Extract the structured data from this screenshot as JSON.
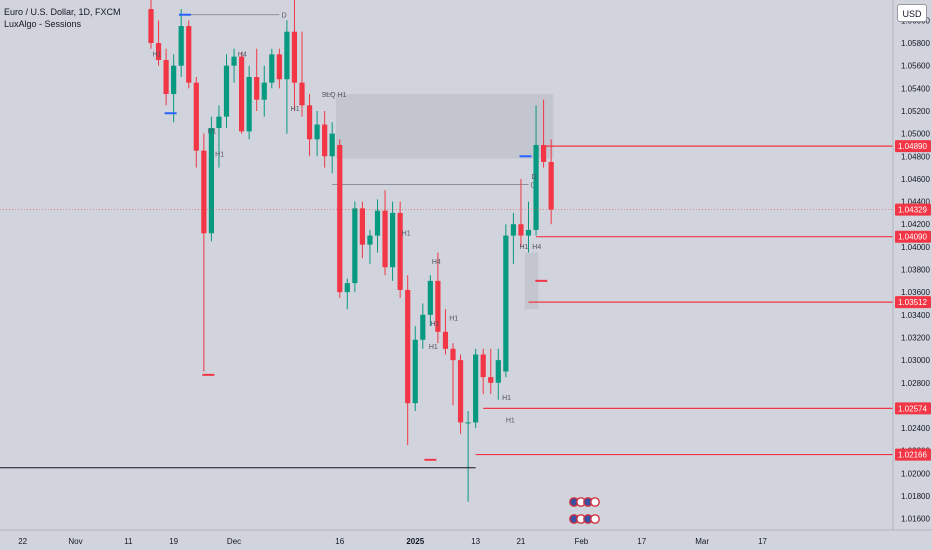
{
  "header": {
    "symbol": "Euro / U.S. Dollar, 1D, FXCM",
    "indicator": "LuxAlgo - Sessions",
    "currency_button": "USD"
  },
  "chart_data": {
    "type": "candlestick",
    "x_ticks": [
      {
        "label": "22",
        "bar": -17
      },
      {
        "label": "Nov",
        "bar": -10
      },
      {
        "label": "11",
        "bar": -3
      },
      {
        "label": "19",
        "bar": 3
      },
      {
        "label": "Dec",
        "bar": 11
      },
      {
        "label": "16",
        "bar": 25
      },
      {
        "label": "2025",
        "bar": 35
      },
      {
        "label": "13",
        "bar": 43
      },
      {
        "label": "21",
        "bar": 49
      },
      {
        "label": "Feb",
        "bar": 57
      },
      {
        "label": "17",
        "bar": 65
      },
      {
        "label": "Mar",
        "bar": 73
      },
      {
        "label": "17",
        "bar": 81
      }
    ],
    "y_ticks": [
      "1.06000",
      "1.05800",
      "1.05600",
      "1.05400",
      "1.05200",
      "1.05000",
      "1.04800",
      "1.04600",
      "1.04400",
      "1.04200",
      "1.04000",
      "1.03800",
      "1.03600",
      "1.03400",
      "1.03200",
      "1.03000",
      "1.02800",
      "1.02600",
      "1.02400",
      "1.02200",
      "1.02000",
      "1.01800",
      "1.01600"
    ],
    "ylim": [
      1.015,
      1.0618
    ],
    "candles": [
      [
        1.061,
        1.062,
        1.0575,
        1.058
      ],
      [
        1.058,
        1.06,
        1.056,
        1.0565
      ],
      [
        1.0565,
        1.0575,
        1.0525,
        1.0535
      ],
      [
        1.0535,
        1.057,
        1.051,
        1.056
      ],
      [
        1.056,
        1.061,
        1.055,
        1.0595
      ],
      [
        1.0595,
        1.06,
        1.054,
        1.0545
      ],
      [
        1.0545,
        1.055,
        1.047,
        1.0485
      ],
      [
        1.0485,
        1.05,
        1.029,
        1.0412
      ],
      [
        1.0412,
        1.0515,
        1.0405,
        1.0505
      ],
      [
        1.0505,
        1.0525,
        1.047,
        1.0515
      ],
      [
        1.0515,
        1.057,
        1.0505,
        1.056
      ],
      [
        1.056,
        1.0575,
        1.0545,
        1.0568
      ],
      [
        1.0568,
        1.0572,
        1.05,
        1.0502
      ],
      [
        1.0502,
        1.056,
        1.0495,
        1.055
      ],
      [
        1.055,
        1.0575,
        1.052,
        1.053
      ],
      [
        1.053,
        1.056,
        1.0515,
        1.0545
      ],
      [
        1.0545,
        1.0575,
        1.054,
        1.057
      ],
      [
        1.057,
        1.0575,
        1.054,
        1.0548
      ],
      [
        1.0548,
        1.06,
        1.05,
        1.059
      ],
      [
        1.059,
        1.064,
        1.052,
        1.0545
      ],
      [
        1.0545,
        1.059,
        1.0515,
        1.0525
      ],
      [
        1.0525,
        1.0535,
        1.048,
        1.0495
      ],
      [
        1.0495,
        1.052,
        1.048,
        1.0508
      ],
      [
        1.0508,
        1.052,
        1.047,
        1.048
      ],
      [
        1.048,
        1.051,
        1.0465,
        1.05
      ],
      [
        1.049,
        1.0495,
        1.0355,
        1.036
      ],
      [
        1.036,
        1.0372,
        1.0345,
        1.0368
      ],
      [
        1.0368,
        1.044,
        1.036,
        1.0434
      ],
      [
        1.0434,
        1.044,
        1.039,
        1.0402
      ],
      [
        1.0402,
        1.0415,
        1.0385,
        1.041
      ],
      [
        1.041,
        1.0442,
        1.0395,
        1.0432
      ],
      [
        1.0432,
        1.045,
        1.0375,
        1.0382
      ],
      [
        1.0382,
        1.044,
        1.037,
        1.043
      ],
      [
        1.043,
        1.044,
        1.0355,
        1.0362
      ],
      [
        1.0362,
        1.0375,
        1.0225,
        1.0262
      ],
      [
        1.0262,
        1.033,
        1.0255,
        1.0318
      ],
      [
        1.0318,
        1.035,
        1.031,
        1.034
      ],
      [
        1.034,
        1.0375,
        1.033,
        1.037
      ],
      [
        1.037,
        1.0395,
        1.0315,
        1.0325
      ],
      [
        1.0325,
        1.0345,
        1.0305,
        1.031
      ],
      [
        1.031,
        1.0315,
        1.026,
        1.03
      ],
      [
        1.03,
        1.0305,
        1.0235,
        1.0245
      ],
      [
        1.0245,
        1.0255,
        1.0175,
        1.0245
      ],
      [
        1.0245,
        1.031,
        1.024,
        1.0305
      ],
      [
        1.0305,
        1.031,
        1.027,
        1.0285
      ],
      [
        1.0285,
        1.031,
        1.027,
        1.028
      ],
      [
        1.028,
        1.031,
        1.0265,
        1.03
      ],
      [
        1.029,
        1.042,
        1.0285,
        1.041
      ],
      [
        1.041,
        1.043,
        1.0385,
        1.042
      ],
      [
        1.042,
        1.046,
        1.04,
        1.041
      ],
      [
        1.041,
        1.044,
        1.0395,
        1.0415
      ],
      [
        1.0415,
        1.0525,
        1.041,
        1.049
      ],
      [
        1.049,
        1.053,
        1.047,
        1.0475
      ],
      [
        1.0475,
        1.0495,
        1.042,
        1.0433
      ]
    ],
    "levels": [
      {
        "price": 1.0489,
        "label": "1.04890"
      },
      {
        "price": 1.0409,
        "label": "1.04090"
      },
      {
        "price": 1.03512,
        "label": "1.03512"
      },
      {
        "price": 1.02574,
        "label": "1.02574"
      },
      {
        "price": 1.02166,
        "label": "1.02166"
      }
    ],
    "current_price": {
      "price": 1.04329,
      "label": "1.04329"
    },
    "annotations": {
      "session_labels": [
        "H1",
        "H4",
        "H1",
        "H1",
        "H1",
        "H1",
        "H4",
        "H1",
        "H1",
        "H1",
        "H1",
        "H4",
        "H1",
        "H1",
        "D"
      ],
      "slq_label": "SLQ H1",
      "d_label_top": "D",
      "d_label_mid": "D"
    },
    "colors": {
      "up": "#089981",
      "down": "#f23645",
      "background": "#d1d4dc",
      "level_line": "#f23645",
      "level_tag_bg": "#f23645",
      "current_tag_bg": "#f23645"
    }
  }
}
